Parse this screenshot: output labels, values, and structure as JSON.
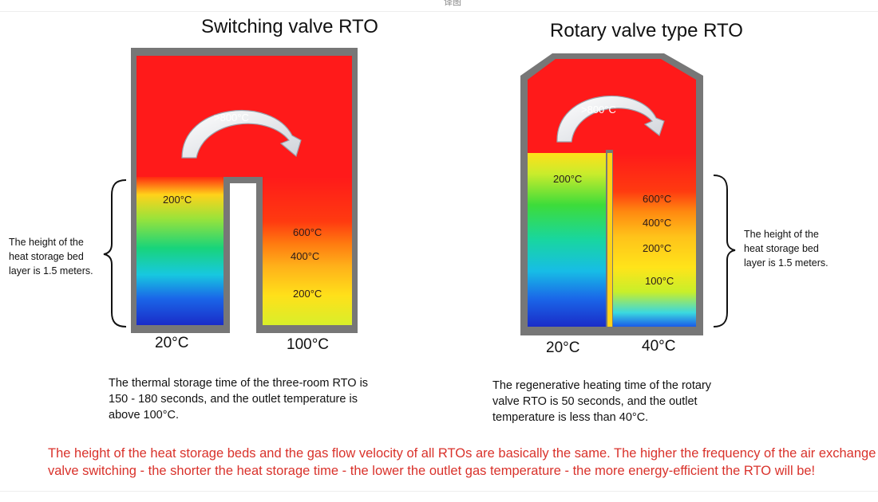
{
  "header": {
    "tab_text": "译图"
  },
  "left": {
    "title": "Switching valve RTO",
    "chamber_temp": ">800°C",
    "bed_left_temp": "200°C",
    "bed_right_temps": [
      "600°C",
      "400°C",
      "200°C"
    ],
    "height_note": "The height of the heat storage bed layer is 1.5 meters.",
    "outlet_left": "20°C",
    "outlet_right": "100°C",
    "description": "The thermal storage time of the three-room RTO is 150 - 180 seconds, and the outlet temperature is above 100°C."
  },
  "right": {
    "title": "Rotary valve type RTO",
    "chamber_temp": ">800°C",
    "bed_left_temp": "200°C",
    "bed_right_temps": [
      "600°C",
      "400°C",
      "200°C",
      "100°C"
    ],
    "height_note": "The height of the heat storage bed layer is 1.5 meters.",
    "outlet_left": "20°C",
    "outlet_right": "40°C",
    "description": "The regenerative heating time of the rotary valve RTO is 50 seconds, and the outlet temperature is less than 40°C."
  },
  "conclusion": "The height of the heat storage beds and the gas flow velocity of all RTOs are basically the same. The higher the frequency of the air exchange valve switching - the shorter the heat storage time - the lower the outlet gas temperature - the more energy-efficient the RTO will be!",
  "colors": {
    "hot": "#ff1a1a",
    "wall": "#777777",
    "accent_text": "#d9322b"
  }
}
